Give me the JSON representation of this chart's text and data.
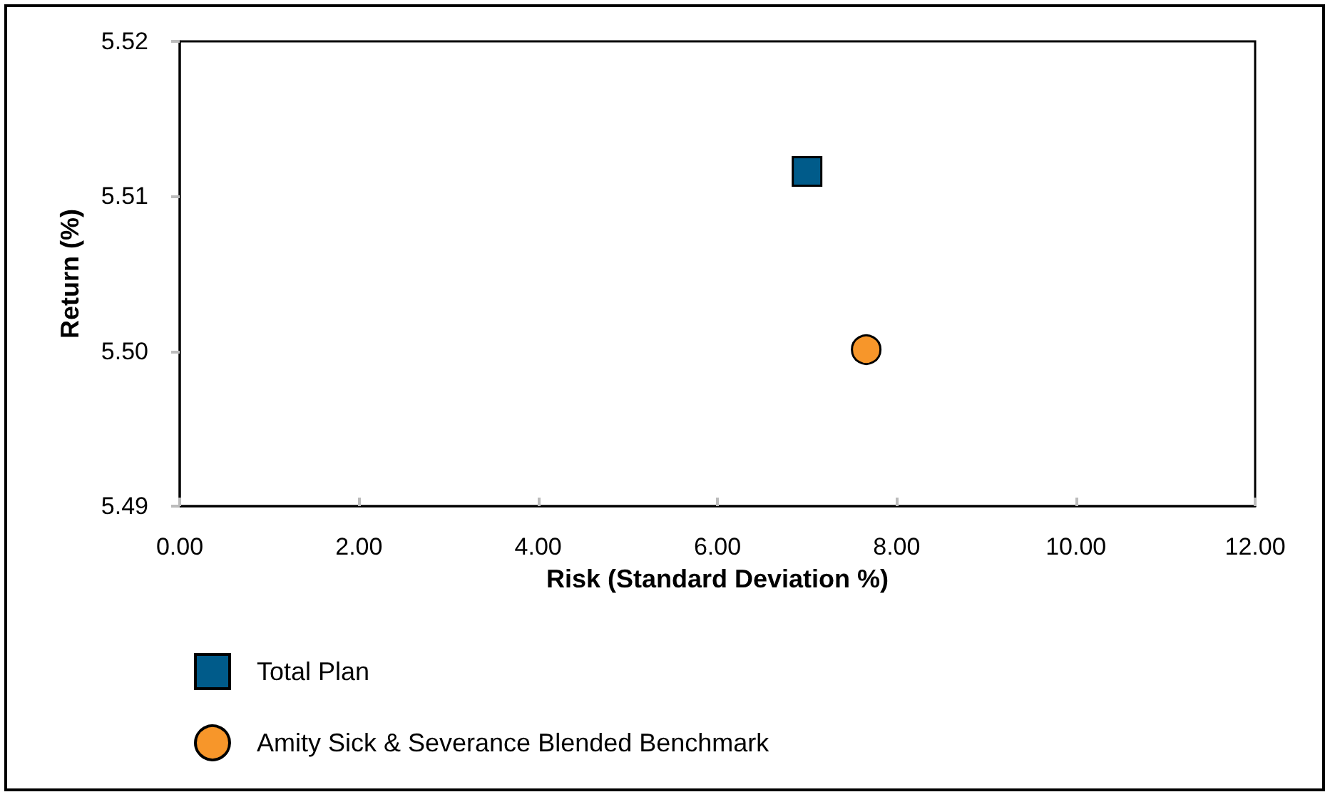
{
  "chart_data": {
    "type": "scatter",
    "xlabel": "Risk (Standard Deviation %)",
    "ylabel": "Return (%)",
    "series": [
      {
        "name": "Total Plan",
        "color": "#005b8a",
        "marker": "square",
        "x": [
          7.0
        ],
        "values": [
          5.5116
        ]
      },
      {
        "name": "Amity Sick & Severance Blended Benchmark",
        "color": "#f7962a",
        "marker": "circle",
        "x": [
          7.66
        ],
        "values": [
          5.5001
        ]
      }
    ],
    "xlim": [
      0,
      12
    ],
    "xticks": [
      {
        "value": 0,
        "label": "0.00"
      },
      {
        "value": 2,
        "label": "2.00"
      },
      {
        "value": 4,
        "label": "4.00"
      },
      {
        "value": 6,
        "label": "6.00"
      },
      {
        "value": 8,
        "label": "8.00"
      },
      {
        "value": 10,
        "label": "10.00"
      },
      {
        "value": 12,
        "label": "12.00"
      }
    ],
    "ylim": [
      5.49,
      5.52
    ],
    "yticks": [
      {
        "value": 5.49,
        "label": "5.49"
      },
      {
        "value": 5.5,
        "label": "5.50"
      },
      {
        "value": 5.51,
        "label": "5.51"
      },
      {
        "value": 5.52,
        "label": "5.52"
      }
    ],
    "grid": false,
    "legend": "bottom left"
  }
}
